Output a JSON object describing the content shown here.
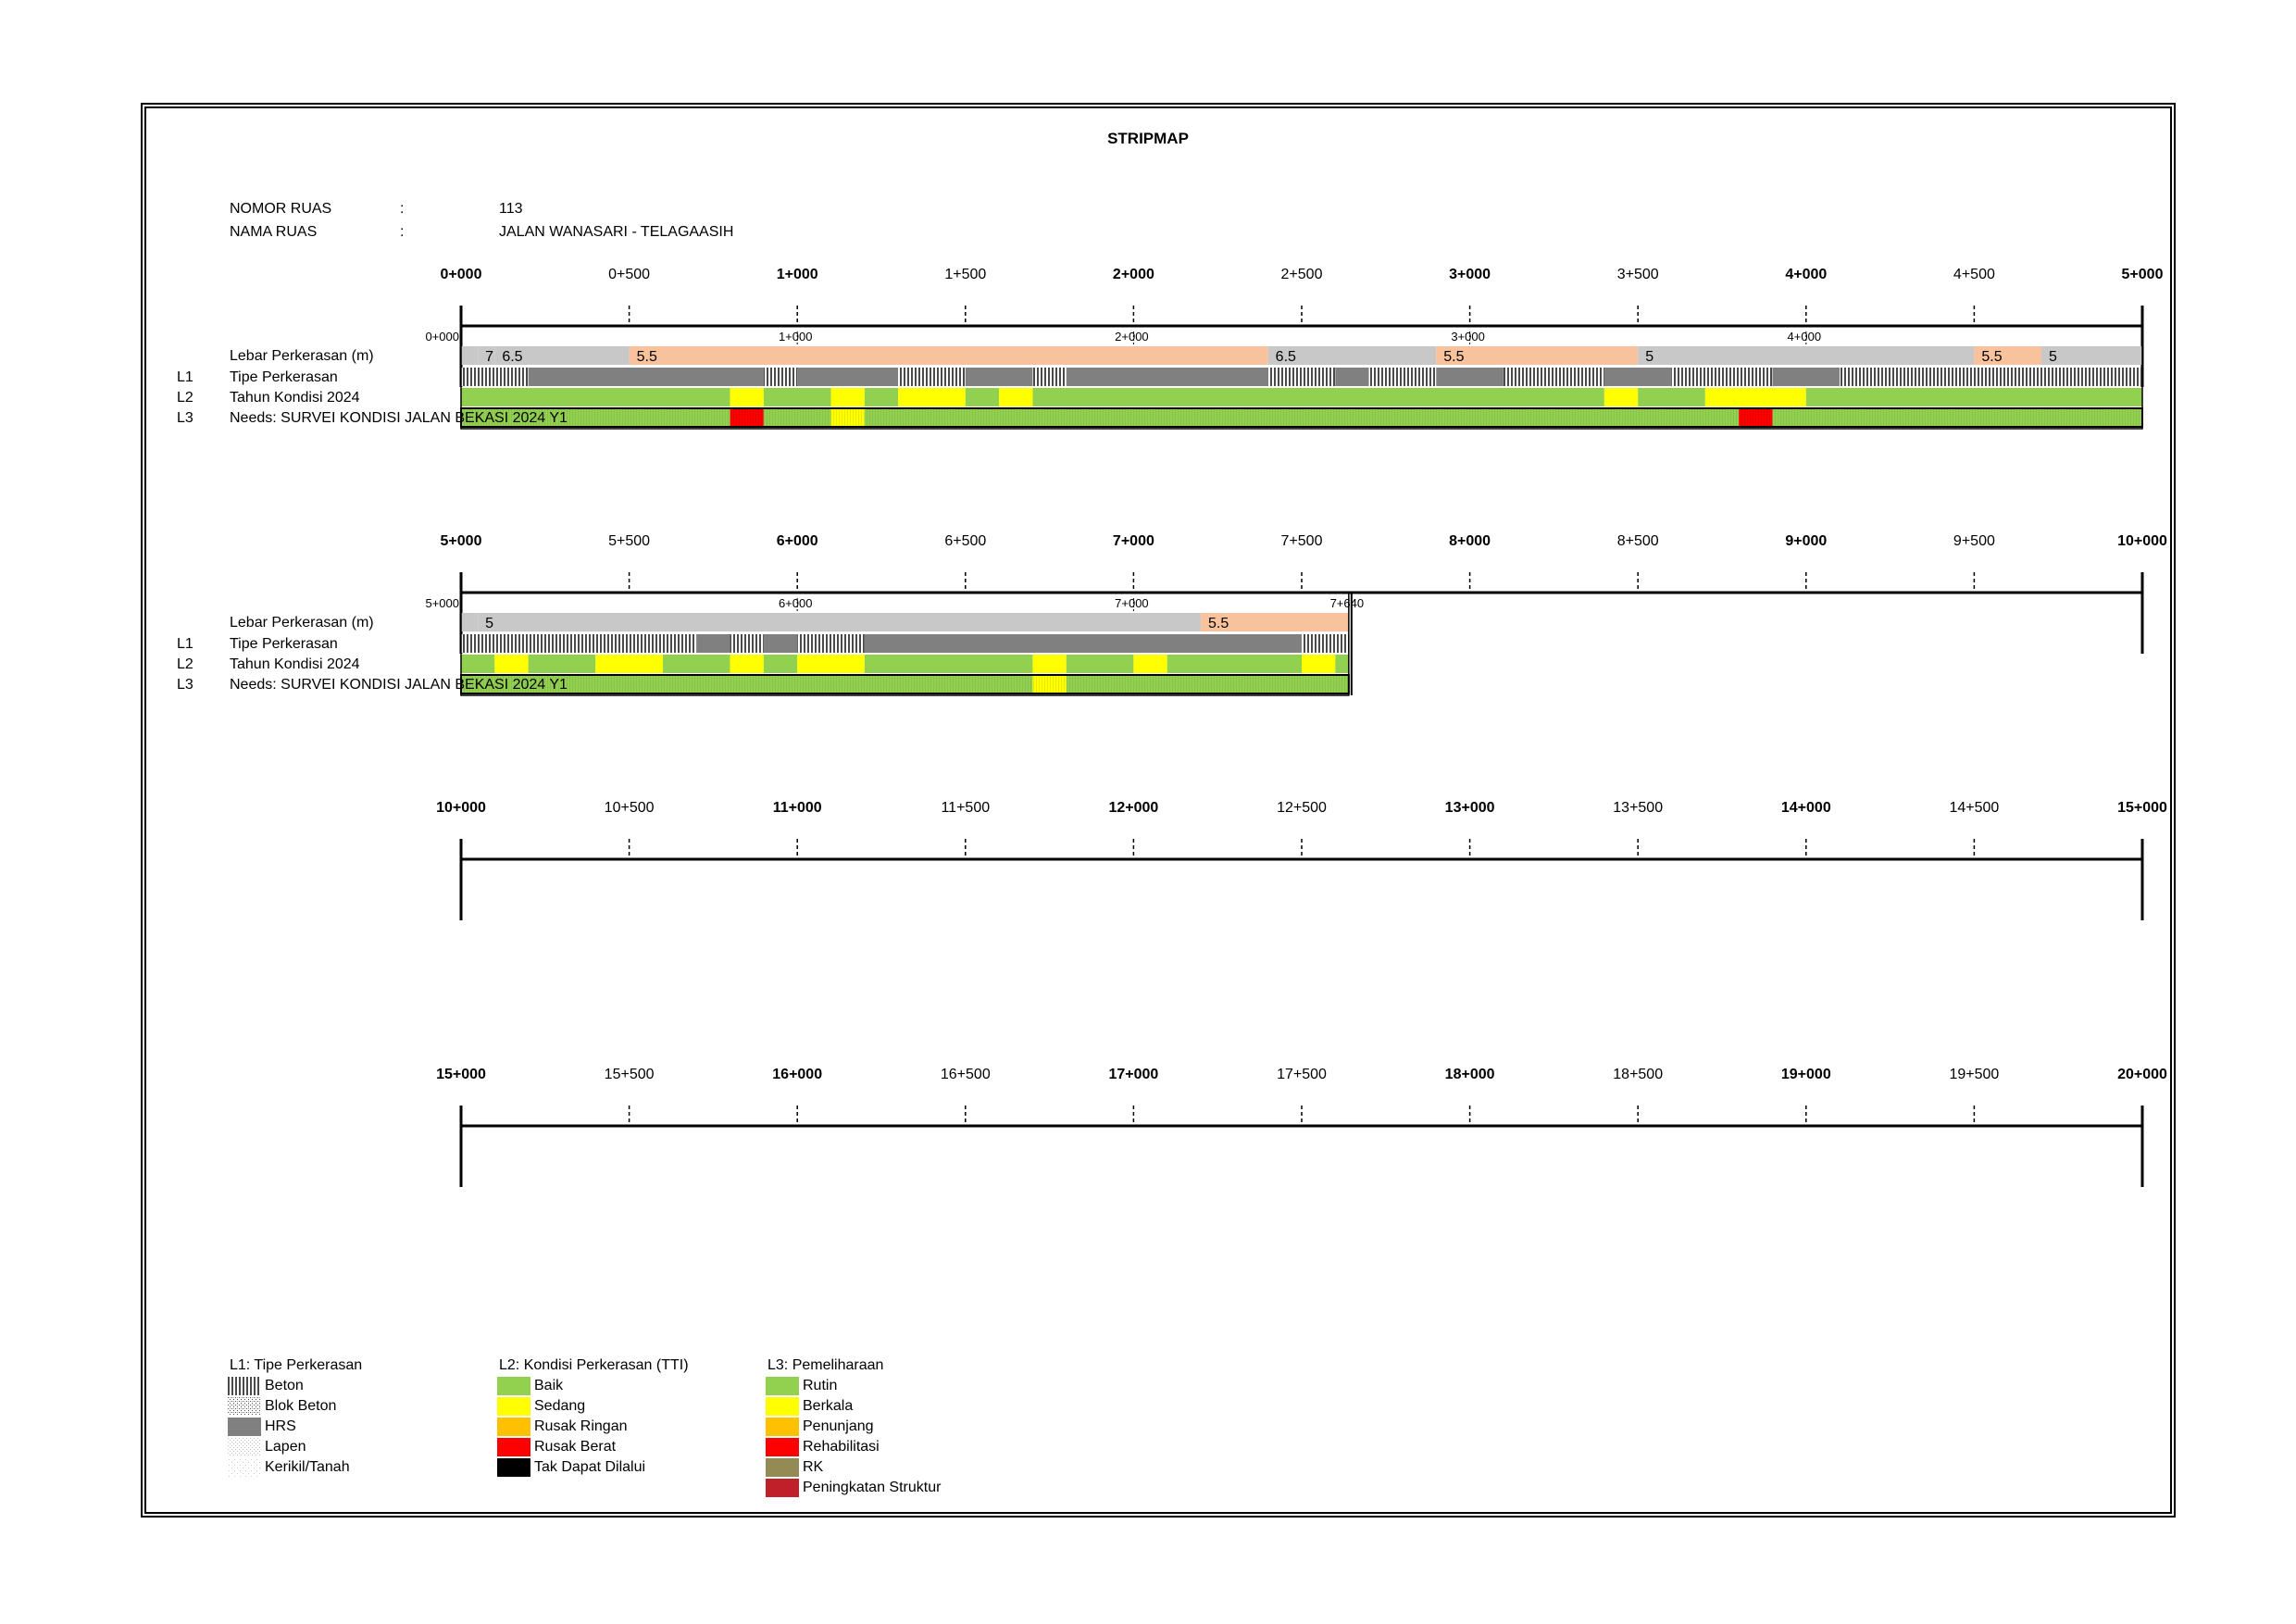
{
  "title": "STRIPMAP",
  "header": {
    "nomor_label": "NOMOR RUAS",
    "nomor_value": "113",
    "nama_label": "NAMA RUAS",
    "nama_value": "JALAN WANASARI - TELAGAASIH",
    "colon": ":"
  },
  "row_labels": {
    "lebar": "Lebar Perkerasan (m)",
    "l1_code": "L1",
    "l1": "Tipe Perkerasan",
    "l2_code": "L2",
    "l2": "Tahun Kondisi 2024",
    "l3_code": "L3",
    "l3": "Needs: SURVEI KONDISI JALAN BEKASI 2024 Y1"
  },
  "colors": {
    "baik": "#92d050",
    "sedang": "#ffff00",
    "rusak_ringan": "#ffc000",
    "rusak_berat": "#ff0000",
    "tak_dapat_dilalui": "#000000",
    "rk": "#948a54",
    "peningkatan": "#c0202a",
    "width_grey": "#c8c8c8",
    "width_peach": "#f8c39c",
    "hrs": "#808080"
  },
  "chart_data": {
    "type": "stripmap",
    "unit": "km",
    "km_per_row": 5,
    "road_end_km": 7.64,
    "rows": [
      {
        "ticks": [
          "0+000",
          "0+500",
          "1+000",
          "1+500",
          "2+000",
          "2+500",
          "3+000",
          "3+500",
          "4+000",
          "4+500",
          "5+000"
        ],
        "inner_ticks": [
          {
            "km": 0,
            "label": "0+000"
          },
          {
            "km": 1,
            "label": "1+000"
          },
          {
            "km": 2,
            "label": "2+000"
          },
          {
            "km": 3,
            "label": "3+000"
          },
          {
            "km": 4,
            "label": "4+000"
          }
        ],
        "has_data": true,
        "width": [
          {
            "from": 0,
            "to": 0.05,
            "value": "",
            "c": "grey"
          },
          {
            "from": 0.05,
            "to": 0.1,
            "value": "7",
            "c": "grey"
          },
          {
            "from": 0.1,
            "to": 0.5,
            "value": "6.5",
            "c": "grey"
          },
          {
            "from": 0.5,
            "to": 2.4,
            "value": "5.5",
            "c": "peach"
          },
          {
            "from": 2.4,
            "to": 2.9,
            "value": "6.5",
            "c": "grey"
          },
          {
            "from": 2.9,
            "to": 3.5,
            "value": "5.5",
            "c": "peach"
          },
          {
            "from": 3.5,
            "to": 4.5,
            "value": "5",
            "c": "grey"
          },
          {
            "from": 4.5,
            "to": 4.7,
            "value": "5.5",
            "c": "peach"
          },
          {
            "from": 4.7,
            "to": 5.0,
            "value": "5",
            "c": "grey"
          }
        ],
        "type_segments": [
          {
            "from": 0,
            "to": 0.2,
            "t": "beton"
          },
          {
            "from": 0.2,
            "to": 0.9,
            "t": "hrs"
          },
          {
            "from": 0.9,
            "to": 1.0,
            "t": "beton"
          },
          {
            "from": 1.0,
            "to": 1.3,
            "t": "hrs"
          },
          {
            "from": 1.3,
            "to": 1.5,
            "t": "beton"
          },
          {
            "from": 1.5,
            "to": 1.7,
            "t": "hrs"
          },
          {
            "from": 1.7,
            "to": 1.8,
            "t": "beton"
          },
          {
            "from": 1.8,
            "to": 2.4,
            "t": "hrs"
          },
          {
            "from": 2.4,
            "to": 2.6,
            "t": "beton"
          },
          {
            "from": 2.6,
            "to": 2.7,
            "t": "hrs"
          },
          {
            "from": 2.7,
            "to": 2.9,
            "t": "beton"
          },
          {
            "from": 2.9,
            "to": 3.1,
            "t": "hrs"
          },
          {
            "from": 3.1,
            "to": 3.4,
            "t": "beton"
          },
          {
            "from": 3.4,
            "to": 3.6,
            "t": "hrs"
          },
          {
            "from": 3.6,
            "to": 3.9,
            "t": "beton"
          },
          {
            "from": 3.9,
            "to": 4.1,
            "t": "hrs"
          },
          {
            "from": 4.1,
            "to": 5.0,
            "t": "beton"
          }
        ],
        "condition": [
          {
            "from": 0,
            "to": 0.8,
            "c": "baik"
          },
          {
            "from": 0.8,
            "to": 0.9,
            "c": "sedang"
          },
          {
            "from": 0.9,
            "to": 1.1,
            "c": "baik"
          },
          {
            "from": 1.1,
            "to": 1.2,
            "c": "sedang"
          },
          {
            "from": 1.2,
            "to": 1.3,
            "c": "baik"
          },
          {
            "from": 1.3,
            "to": 1.5,
            "c": "sedang"
          },
          {
            "from": 1.5,
            "to": 1.6,
            "c": "baik"
          },
          {
            "from": 1.6,
            "to": 1.7,
            "c": "sedang"
          },
          {
            "from": 1.7,
            "to": 3.4,
            "c": "baik"
          },
          {
            "from": 3.4,
            "to": 3.5,
            "c": "sedang"
          },
          {
            "from": 3.5,
            "to": 3.7,
            "c": "baik"
          },
          {
            "from": 3.7,
            "to": 4.0,
            "c": "sedang"
          },
          {
            "from": 4.0,
            "to": 5.0,
            "c": "baik"
          }
        ],
        "needs": [
          {
            "from": 0,
            "to": 0.8,
            "c": "baik"
          },
          {
            "from": 0.8,
            "to": 0.9,
            "c": "rusak_berat"
          },
          {
            "from": 0.9,
            "to": 1.1,
            "c": "baik"
          },
          {
            "from": 1.1,
            "to": 1.2,
            "c": "sedang"
          },
          {
            "from": 1.2,
            "to": 3.8,
            "c": "baik"
          },
          {
            "from": 3.8,
            "to": 3.9,
            "c": "rusak_berat"
          },
          {
            "from": 3.9,
            "to": 5.0,
            "c": "baik"
          }
        ]
      },
      {
        "ticks": [
          "5+000",
          "5+500",
          "6+000",
          "6+500",
          "7+000",
          "7+500",
          "8+000",
          "8+500",
          "9+000",
          "9+500",
          "10+000"
        ],
        "inner_ticks": [
          {
            "km": 0,
            "label": "5+000"
          },
          {
            "km": 1,
            "label": "6+000"
          },
          {
            "km": 2,
            "label": "7+000"
          },
          {
            "km": 2.64,
            "label": "7+640"
          }
        ],
        "has_data": true,
        "end": 2.64,
        "width": [
          {
            "from": 0,
            "to": 0.05,
            "value": "",
            "c": "grey"
          },
          {
            "from": 0.05,
            "to": 2.2,
            "value": "5",
            "c": "grey"
          },
          {
            "from": 2.2,
            "to": 2.64,
            "value": "5.5",
            "c": "peach"
          }
        ],
        "type_segments": [
          {
            "from": 0,
            "to": 0.7,
            "t": "beton"
          },
          {
            "from": 0.7,
            "to": 0.8,
            "t": "hrs"
          },
          {
            "from": 0.8,
            "to": 0.9,
            "t": "beton"
          },
          {
            "from": 0.9,
            "to": 1.0,
            "t": "hrs"
          },
          {
            "from": 1.0,
            "to": 1.2,
            "t": "beton"
          },
          {
            "from": 1.2,
            "to": 2.5,
            "t": "hrs"
          },
          {
            "from": 2.5,
            "to": 2.64,
            "t": "beton"
          }
        ],
        "condition": [
          {
            "from": 0,
            "to": 0.1,
            "c": "baik"
          },
          {
            "from": 0.1,
            "to": 0.2,
            "c": "sedang"
          },
          {
            "from": 0.2,
            "to": 0.4,
            "c": "baik"
          },
          {
            "from": 0.4,
            "to": 0.6,
            "c": "sedang"
          },
          {
            "from": 0.6,
            "to": 0.8,
            "c": "baik"
          },
          {
            "from": 0.8,
            "to": 0.9,
            "c": "sedang"
          },
          {
            "from": 0.9,
            "to": 1.0,
            "c": "baik"
          },
          {
            "from": 1.0,
            "to": 1.2,
            "c": "sedang"
          },
          {
            "from": 1.2,
            "to": 1.7,
            "c": "baik"
          },
          {
            "from": 1.7,
            "to": 1.8,
            "c": "sedang"
          },
          {
            "from": 1.8,
            "to": 2.0,
            "c": "baik"
          },
          {
            "from": 2.0,
            "to": 2.1,
            "c": "sedang"
          },
          {
            "from": 2.1,
            "to": 2.5,
            "c": "baik"
          },
          {
            "from": 2.5,
            "to": 2.6,
            "c": "sedang"
          },
          {
            "from": 2.6,
            "to": 2.64,
            "c": "baik"
          }
        ],
        "needs": [
          {
            "from": 0,
            "to": 1.7,
            "c": "baik"
          },
          {
            "from": 1.7,
            "to": 1.8,
            "c": "sedang"
          },
          {
            "from": 1.8,
            "to": 2.64,
            "c": "baik"
          }
        ]
      },
      {
        "ticks": [
          "10+000",
          "10+500",
          "11+000",
          "11+500",
          "12+000",
          "12+500",
          "13+000",
          "13+500",
          "14+000",
          "14+500",
          "15+000"
        ],
        "has_data": false
      },
      {
        "ticks": [
          "15+000",
          "15+500",
          "16+000",
          "16+500",
          "17+000",
          "17+500",
          "18+000",
          "18+500",
          "19+000",
          "19+500",
          "20+000"
        ],
        "has_data": false
      }
    ]
  },
  "legend": {
    "l1": {
      "title": "L1: Tipe Perkerasan",
      "items": [
        {
          "label": "Beton",
          "pattern": "beton"
        },
        {
          "label": "Blok Beton",
          "pattern": "blok"
        },
        {
          "label": "HRS",
          "pattern": "hrs"
        },
        {
          "label": "Lapen",
          "pattern": "lapen"
        },
        {
          "label": "Kerikil/Tanah",
          "pattern": "kerikil"
        }
      ]
    },
    "l2": {
      "title": "L2: Kondisi Perkerasan (TTI)",
      "items": [
        {
          "label": "Baik",
          "color": "#92d050"
        },
        {
          "label": "Sedang",
          "color": "#ffff00"
        },
        {
          "label": "Rusak Ringan",
          "color": "#ffc000"
        },
        {
          "label": "Rusak Berat",
          "color": "#ff0000"
        },
        {
          "label": "Tak Dapat Dilalui",
          "color": "#000000"
        }
      ]
    },
    "l3": {
      "title": "L3: Pemeliharaan",
      "items": [
        {
          "label": "Rutin",
          "color": "#92d050"
        },
        {
          "label": "Berkala",
          "color": "#ffff00"
        },
        {
          "label": "Penunjang",
          "color": "#ffc000"
        },
        {
          "label": "Rehabilitasi",
          "color": "#ff0000"
        },
        {
          "label": "RK",
          "color": "#948a54"
        },
        {
          "label": "Peningkatan Struktur",
          "color": "#c0202a"
        }
      ]
    }
  }
}
